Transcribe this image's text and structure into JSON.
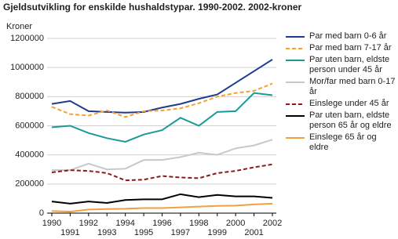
{
  "chart_data": {
    "type": "line",
    "title": "Gjeldsutvikling for enskilde hushaldstypar. 1990-2002. 2002-kroner",
    "y_label": "Kroner",
    "x": [
      1990,
      1991,
      1992,
      1993,
      1994,
      1995,
      1996,
      1997,
      1998,
      1999,
      2000,
      2001,
      2002
    ],
    "xlim": [
      1990,
      2002
    ],
    "xticks": [
      1990,
      1991,
      1992,
      1993,
      1994,
      1995,
      1996,
      1997,
      1998,
      1999,
      2000,
      2001,
      2002
    ],
    "ylim": [
      0,
      1200000
    ],
    "yticks": [
      0,
      200000,
      400000,
      600000,
      800000,
      1000000,
      1200000
    ],
    "grid": true,
    "series": [
      {
        "name": "Par med barn 0-6 år",
        "color": "#1f3a8f",
        "dashed": false,
        "values": [
          750000,
          770000,
          700000,
          695000,
          690000,
          695000,
          725000,
          750000,
          785000,
          815000,
          895000,
          975000,
          1055000
        ]
      },
      {
        "name": "Par med barn 7-17 år",
        "color": "#f5a030",
        "dashed": true,
        "values": [
          730000,
          680000,
          670000,
          705000,
          660000,
          700000,
          705000,
          720000,
          755000,
          800000,
          825000,
          840000,
          890000
        ]
      },
      {
        "name": "Par uten barn, eldste person under 45 år",
        "color": "#1a9a96",
        "dashed": false,
        "values": [
          590000,
          600000,
          550000,
          515000,
          490000,
          540000,
          570000,
          655000,
          600000,
          695000,
          700000,
          825000,
          810000
        ]
      },
      {
        "name": "Mor/far med barn 0-17 år",
        "color": "#c8c8c8",
        "dashed": false,
        "values": [
          295000,
          295000,
          340000,
          300000,
          305000,
          365000,
          365000,
          385000,
          415000,
          400000,
          445000,
          465000,
          505000
        ]
      },
      {
        "name": "Einslege under 45 år",
        "color": "#8b1a1a",
        "dashed": true,
        "values": [
          280000,
          295000,
          290000,
          275000,
          225000,
          230000,
          255000,
          245000,
          240000,
          275000,
          290000,
          315000,
          335000
        ]
      },
      {
        "name": "Par uten barn, eldste person 65 år og eldre",
        "color": "#000000",
        "dashed": false,
        "values": [
          80000,
          65000,
          80000,
          70000,
          90000,
          95000,
          95000,
          130000,
          110000,
          125000,
          115000,
          115000,
          105000
        ]
      },
      {
        "name": "Einslege 65 år og eldre",
        "color": "#f0a040",
        "dashed": false,
        "values": [
          15000,
          10000,
          25000,
          28000,
          30000,
          35000,
          35000,
          40000,
          45000,
          50000,
          52000,
          60000,
          65000
        ]
      }
    ]
  }
}
